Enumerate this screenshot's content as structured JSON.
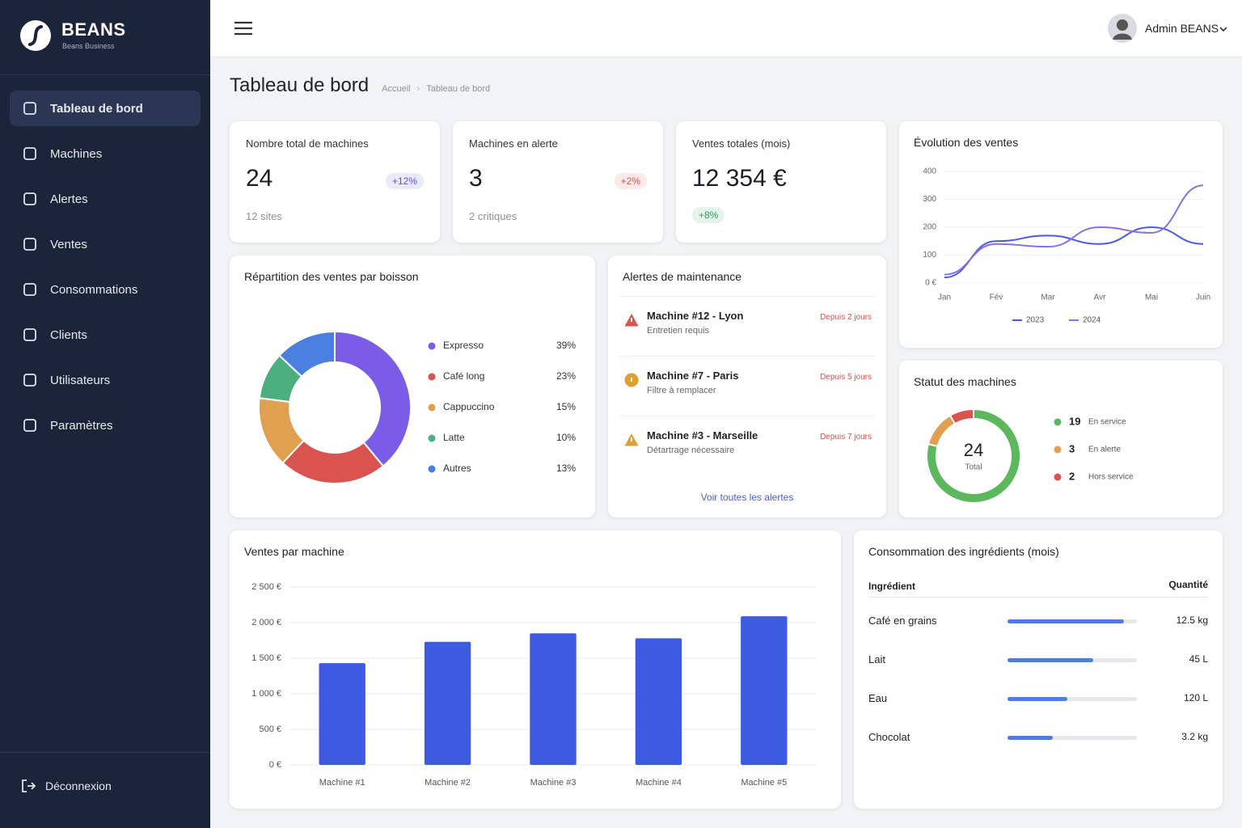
{
  "sidebar": {
    "brand": "BEANS",
    "tagline": "Beans Business",
    "nav": [
      "Tableau de bord",
      "Machines",
      "Alertes",
      "Ventes",
      "Consommations",
      "Clients",
      "Utilisateurs",
      "Paramètres"
    ],
    "logout": "Déconnexion"
  },
  "header": {
    "user": "Admin BEANS",
    "title": "Tableau de bord",
    "breadcrumb": [
      "Accueil",
      "Tableau de bord"
    ]
  },
  "kpis": [
    {
      "label": "Nombre total de machines",
      "value": "24",
      "change": "+12%",
      "change_color": "#5a55d6",
      "note": "12 sites"
    },
    {
      "label": "Machines en alerte",
      "value": "3",
      "change": "+2%",
      "change_color": "#d9534f",
      "note": "2 critiques"
    },
    {
      "label": "Ventes totales (mois)",
      "value": "12 354 €",
      "change": "+8%",
      "change_color": "#2e9e5b"
    }
  ],
  "chart_data": [
    {
      "type": "line",
      "title": "Évolution des ventes",
      "categories": [
        "Jan",
        "Fév",
        "Mar",
        "Avr",
        "Mai",
        "Juin"
      ],
      "series": [
        {
          "name": "2023",
          "color": "#4a5de0",
          "values": [
            20,
            150,
            170,
            140,
            200,
            140
          ]
        },
        {
          "name": "2024",
          "color": "#8a6fe0",
          "values": [
            30,
            140,
            130,
            200,
            180,
            350
          ]
        }
      ],
      "ylim": [
        0,
        400
      ],
      "yticks": [
        {
          "value": 0,
          "label": "0 €"
        },
        100,
        200,
        300,
        400
      ],
      "grid": true
    },
    {
      "type": "donut",
      "title": "Répartition des ventes par boisson",
      "categories": [
        "Expresso",
        "Café long",
        "Cappuccino",
        "Latte",
        "Autres"
      ],
      "values": [
        39,
        23,
        15,
        10,
        13
      ],
      "value_labels": [
        "39%",
        "23%",
        "15%",
        "10%",
        "13%"
      ],
      "colors": [
        "#7b5ce6",
        "#d9534f",
        "#e0a050",
        "#4caf80",
        "#4a7fe0"
      ]
    },
    {
      "type": "donut",
      "title": "Statut des machines",
      "categories": [
        "En service",
        "En alerte",
        "Hors service"
      ],
      "values": [
        19,
        3,
        2
      ],
      "colors": [
        "#5cb85c",
        "#e0a050",
        "#d9534f"
      ],
      "total": 24,
      "total_label": "Total"
    },
    {
      "type": "bar",
      "title": "Ventes par machine",
      "categories": [
        "Machine #1",
        "Machine #2",
        "Machine #3",
        "Machine #4",
        "Machine #5"
      ],
      "values": [
        1430,
        1730,
        1850,
        1780,
        2090
      ],
      "color": "#3d5be0",
      "ylim": [
        0,
        2500
      ],
      "yticks": [
        {
          "value": 0,
          "label": "0 €"
        },
        {
          "value": 500,
          "label": "500 €"
        },
        {
          "value": 1000,
          "label": "1 000 €"
        },
        {
          "value": 1500,
          "label": "1 500 €"
        },
        {
          "value": 2000,
          "label": "2 000 €"
        },
        {
          "value": 2500,
          "label": "2 500 €"
        }
      ],
      "grid": true
    }
  ],
  "alerts": {
    "title": "Alertes de maintenance",
    "items": [
      {
        "title": "Machine #12 - Lyon",
        "subtitle": "Entretien requis",
        "time": "Depuis 2 jours",
        "icon": "triangle",
        "color": "#d9534f"
      },
      {
        "title": "Machine #7 - Paris",
        "subtitle": "Filtre à remplacer",
        "time": "Depuis 5 jours",
        "icon": "circle",
        "color": "#e0a030"
      },
      {
        "title": "Machine #3 - Marseille",
        "subtitle": "Détartrage nécessaire",
        "time": "Depuis 7 jours",
        "icon": "triangle",
        "color": "#e0a030"
      }
    ],
    "link": "Voir toutes les alertes"
  },
  "ingredients": {
    "title": "Consommation des ingrédients (mois)",
    "headers": [
      "Ingrédient",
      "Quantité"
    ],
    "rows": [
      {
        "name": "Café en grains",
        "quantity": "12.5 kg",
        "level": 90
      },
      {
        "name": "Lait",
        "quantity": "45 L",
        "level": 66
      },
      {
        "name": "Eau",
        "quantity": "120 L",
        "level": 46
      },
      {
        "name": "Chocolat",
        "quantity": "3.2 kg",
        "level": 35
      }
    ]
  }
}
